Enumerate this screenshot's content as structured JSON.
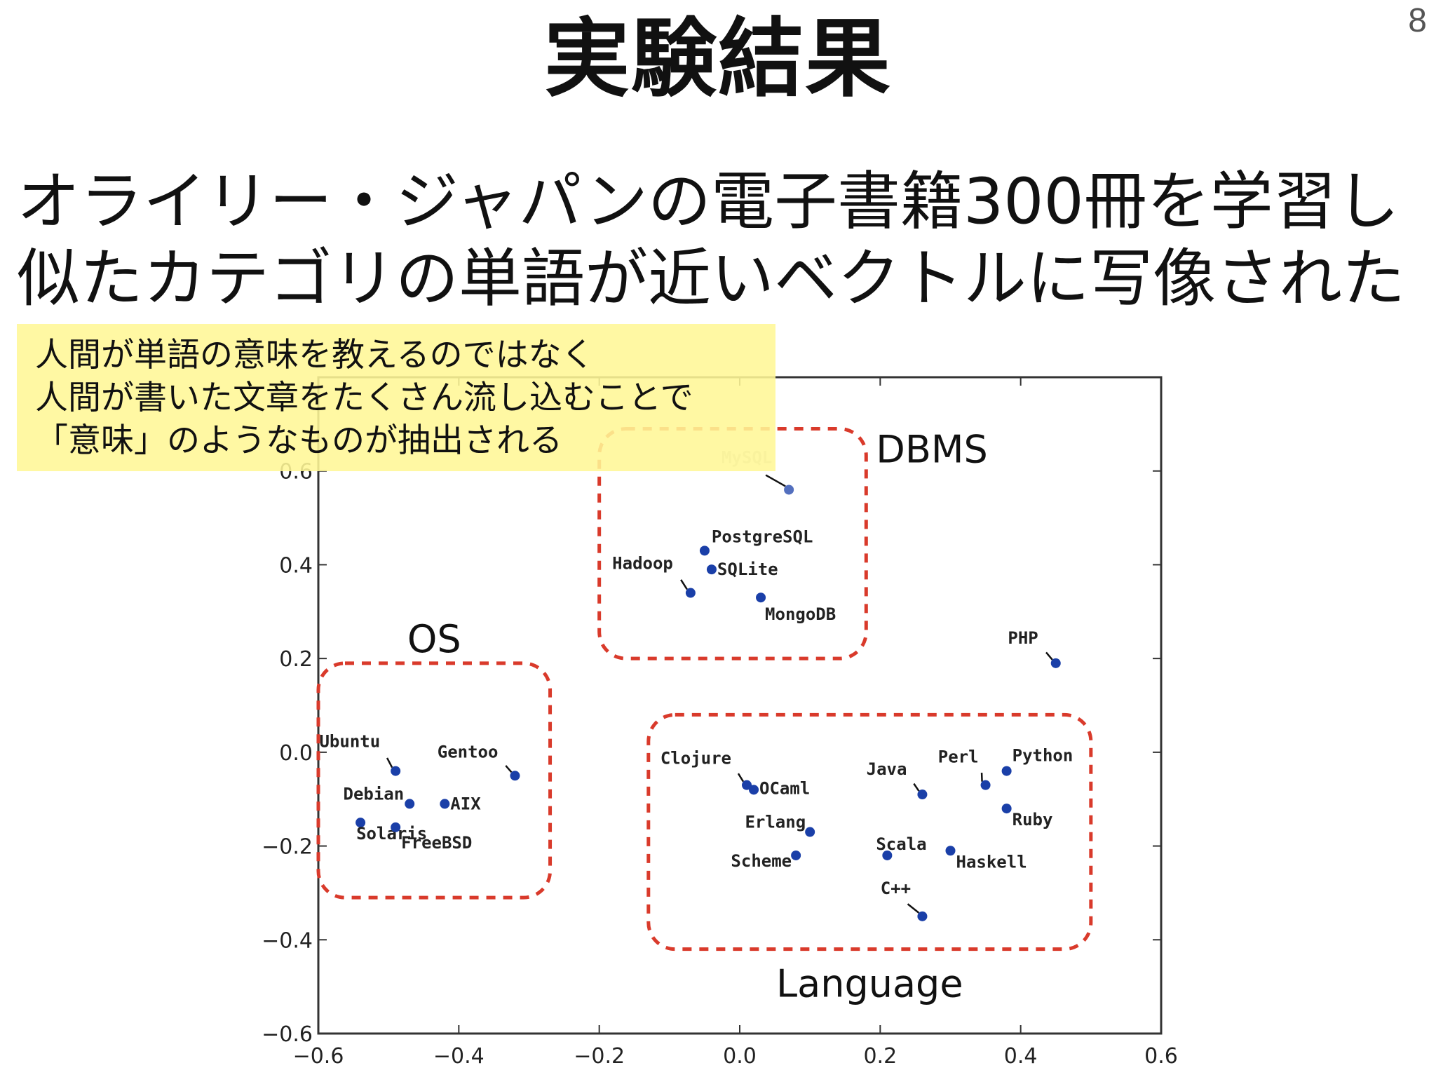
{
  "slide": {
    "title": "実験結果",
    "page_number": "8",
    "subtitle_lines": [
      "オライリー・ジャパンの電子書籍300冊を学習し",
      "似たカテゴリの単語が近いベクトルに写像された"
    ],
    "note_lines": [
      "人間が単語の意味を教えるのではなく",
      "人間が書いた文章をたくさん流し込むことで",
      "「意味」のようなものが抽出される"
    ]
  },
  "colors": {
    "point": "#1a3fa8",
    "group_border": "#d93a2b",
    "note_bg": "#fff796",
    "axis": "#333333"
  },
  "chart_data": {
    "type": "scatter",
    "xlim": [
      -0.6,
      0.6
    ],
    "ylim": [
      -0.6,
      0.8
    ],
    "x_ticks": [
      {
        "v": -0.6,
        "label": "−0.6"
      },
      {
        "v": -0.4,
        "label": "−0.4"
      },
      {
        "v": -0.2,
        "label": "−0.2"
      },
      {
        "v": 0.0,
        "label": "0.0"
      },
      {
        "v": 0.2,
        "label": "0.2"
      },
      {
        "v": 0.4,
        "label": "0.4"
      },
      {
        "v": 0.6,
        "label": "0.6"
      }
    ],
    "y_ticks": [
      {
        "v": -0.6,
        "label": "−0.6"
      },
      {
        "v": -0.4,
        "label": "−0.4"
      },
      {
        "v": -0.2,
        "label": "−0.2"
      },
      {
        "v": 0.0,
        "label": "0.0"
      },
      {
        "v": 0.2,
        "label": "0.2"
      },
      {
        "v": 0.4,
        "label": "0.4"
      },
      {
        "v": 0.6,
        "label": "0.6"
      }
    ],
    "grid": false,
    "points": [
      {
        "label": "MySQL",
        "x": 0.07,
        "y": 0.56,
        "faded": true
      },
      {
        "label": "PostgreSQL",
        "x": -0.05,
        "y": 0.43
      },
      {
        "label": "SQLite",
        "x": -0.04,
        "y": 0.39
      },
      {
        "label": "Hadoop",
        "x": -0.07,
        "y": 0.34
      },
      {
        "label": "MongoDB",
        "x": 0.03,
        "y": 0.33
      },
      {
        "label": "PHP",
        "x": 0.45,
        "y": 0.19
      },
      {
        "label": "Ubuntu",
        "x": -0.49,
        "y": -0.04
      },
      {
        "label": "Gentoo",
        "x": -0.32,
        "y": -0.05
      },
      {
        "label": "Debian",
        "x": -0.47,
        "y": -0.11
      },
      {
        "label": "AIX",
        "x": -0.42,
        "y": -0.11
      },
      {
        "label": "Solaris",
        "x": -0.54,
        "y": -0.15
      },
      {
        "label": "FreeBSD",
        "x": -0.49,
        "y": -0.16
      },
      {
        "label": "Clojure",
        "x": 0.01,
        "y": -0.07
      },
      {
        "label": "OCaml",
        "x": 0.02,
        "y": -0.08
      },
      {
        "label": "Java",
        "x": 0.26,
        "y": -0.09
      },
      {
        "label": "Perl",
        "x": 0.35,
        "y": -0.07
      },
      {
        "label": "Python",
        "x": 0.38,
        "y": -0.04
      },
      {
        "label": "Ruby",
        "x": 0.38,
        "y": -0.12
      },
      {
        "label": "Erlang",
        "x": 0.1,
        "y": -0.17
      },
      {
        "label": "Scheme",
        "x": 0.08,
        "y": -0.22
      },
      {
        "label": "Scala",
        "x": 0.21,
        "y": -0.22
      },
      {
        "label": "Haskell",
        "x": 0.3,
        "y": -0.21
      },
      {
        "label": "C++",
        "x": 0.26,
        "y": -0.35
      }
    ],
    "groups": [
      {
        "label": "OS",
        "x_range": [
          -0.6,
          -0.27
        ],
        "y_range": [
          -0.31,
          0.19
        ]
      },
      {
        "label": "DBMS",
        "x_range": [
          -0.2,
          0.18
        ],
        "y_range": [
          0.2,
          0.69
        ]
      },
      {
        "label": "Language",
        "x_range": [
          -0.13,
          0.5
        ],
        "y_range": [
          -0.42,
          0.08
        ]
      }
    ]
  }
}
